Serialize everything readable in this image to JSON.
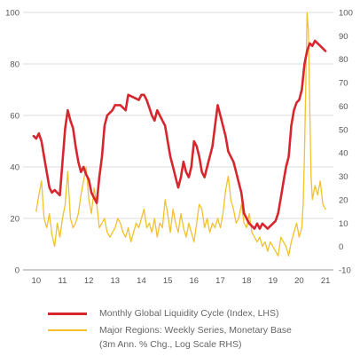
{
  "chart_data": {
    "type": "line",
    "x_ticks": [
      "10",
      "11",
      "12",
      "13",
      "14",
      "15",
      "16",
      "17",
      "18",
      "19",
      "20",
      "21"
    ],
    "xlim": [
      2009.5,
      2021.3
    ],
    "y_left": {
      "ticks": [
        "0",
        "20",
        "40",
        "60",
        "80",
        "100"
      ],
      "lim": [
        0,
        100
      ]
    },
    "y_right": {
      "ticks": [
        "-10",
        "0",
        "10",
        "20",
        "30",
        "40",
        "50",
        "60",
        "70",
        "80",
        "90",
        "100"
      ],
      "lim": [
        -10,
        100
      ]
    },
    "grid": "horizontal",
    "legend_position": "bottom",
    "series": [
      {
        "name": "Monthly Global Liquidity Cycle (Index, LHS)",
        "axis": "left",
        "color": "#d7262e",
        "x": [
          2009.9,
          2010.0,
          2010.1,
          2010.2,
          2010.3,
          2010.4,
          2010.5,
          2010.6,
          2010.7,
          2010.8,
          2010.9,
          2011.0,
          2011.1,
          2011.2,
          2011.3,
          2011.4,
          2011.5,
          2011.6,
          2011.7,
          2011.8,
          2011.9,
          2012.0,
          2012.1,
          2012.2,
          2012.3,
          2012.4,
          2012.5,
          2012.6,
          2012.7,
          2012.9,
          2013.0,
          2013.2,
          2013.4,
          2013.5,
          2013.7,
          2013.9,
          2014.0,
          2014.1,
          2014.2,
          2014.3,
          2014.4,
          2014.5,
          2014.6,
          2014.7,
          2014.8,
          2014.9,
          2015.0,
          2015.1,
          2015.2,
          2015.3,
          2015.4,
          2015.5,
          2015.6,
          2015.7,
          2015.8,
          2015.9,
          2016.0,
          2016.1,
          2016.2,
          2016.3,
          2016.4,
          2016.5,
          2016.6,
          2016.7,
          2016.8,
          2016.9,
          2017.0,
          2017.1,
          2017.2,
          2017.3,
          2017.4,
          2017.5,
          2017.6,
          2017.7,
          2017.8,
          2017.9,
          2018.0,
          2018.1,
          2018.2,
          2018.3,
          2018.4,
          2018.5,
          2018.6,
          2018.7,
          2018.8,
          2018.9,
          2019.0,
          2019.1,
          2019.2,
          2019.3,
          2019.4,
          2019.5,
          2019.6,
          2019.7,
          2019.8,
          2019.9,
          2020.0,
          2020.1,
          2020.2,
          2020.3,
          2020.4,
          2020.5,
          2020.6,
          2020.7,
          2020.8,
          2020.9,
          2021.0
        ],
        "y": [
          52,
          51,
          53,
          50,
          44,
          38,
          32,
          30,
          31,
          30,
          29,
          42,
          55,
          62,
          58,
          55,
          48,
          42,
          38,
          40,
          37,
          35,
          30,
          28,
          26,
          36,
          44,
          56,
          60,
          62,
          64,
          64,
          62,
          68,
          67,
          66,
          68,
          68,
          66,
          63,
          60,
          58,
          62,
          60,
          58,
          56,
          50,
          44,
          40,
          36,
          32,
          36,
          42,
          38,
          36,
          40,
          50,
          48,
          44,
          38,
          36,
          40,
          44,
          48,
          56,
          64,
          60,
          56,
          52,
          46,
          44,
          42,
          38,
          34,
          30,
          22,
          20,
          18,
          17,
          16,
          18,
          16,
          18,
          17,
          16,
          17,
          18,
          19,
          22,
          28,
          34,
          40,
          44,
          56,
          62,
          65,
          66,
          70,
          80,
          85,
          88,
          87,
          89,
          88,
          87,
          86,
          85
        ]
      },
      {
        "name": "Major Regions: Weekly Series, Monetary Base",
        "name_line2": "(3m Ann. % Chg., Log Scale RHS)",
        "axis": "right",
        "color": "#f2c12e",
        "x": [
          2010.0,
          2010.1,
          2010.2,
          2010.3,
          2010.4,
          2010.5,
          2010.6,
          2010.7,
          2010.8,
          2010.9,
          2011.0,
          2011.1,
          2011.2,
          2011.3,
          2011.4,
          2011.5,
          2011.6,
          2011.7,
          2011.8,
          2011.9,
          2012.0,
          2012.1,
          2012.2,
          2012.3,
          2012.4,
          2012.5,
          2012.6,
          2012.7,
          2012.8,
          2012.9,
          2013.0,
          2013.1,
          2013.2,
          2013.3,
          2013.4,
          2013.5,
          2013.6,
          2013.7,
          2013.8,
          2013.9,
          2014.0,
          2014.1,
          2014.2,
          2014.3,
          2014.4,
          2014.5,
          2014.6,
          2014.7,
          2014.8,
          2014.9,
          2015.0,
          2015.1,
          2015.2,
          2015.3,
          2015.4,
          2015.5,
          2015.6,
          2015.7,
          2015.8,
          2015.9,
          2016.0,
          2016.1,
          2016.2,
          2016.3,
          2016.4,
          2016.5,
          2016.6,
          2016.7,
          2016.8,
          2016.9,
          2017.0,
          2017.1,
          2017.2,
          2017.3,
          2017.4,
          2017.5,
          2017.6,
          2017.7,
          2017.8,
          2017.9,
          2018.0,
          2018.1,
          2018.2,
          2018.3,
          2018.4,
          2018.5,
          2018.6,
          2018.7,
          2018.8,
          2018.9,
          2019.0,
          2019.1,
          2019.2,
          2019.3,
          2019.4,
          2019.5,
          2019.6,
          2019.7,
          2019.8,
          2019.9,
          2020.0,
          2020.1,
          2020.15,
          2020.2,
          2020.25,
          2020.3,
          2020.35,
          2020.4,
          2020.45,
          2020.5,
          2020.6,
          2020.7,
          2020.8,
          2020.9,
          2021.0
        ],
        "y": [
          15,
          22,
          28,
          12,
          8,
          14,
          5,
          0,
          10,
          4,
          12,
          18,
          32,
          12,
          8,
          10,
          14,
          22,
          28,
          34,
          20,
          14,
          25,
          18,
          8,
          10,
          12,
          6,
          4,
          6,
          8,
          12,
          10,
          6,
          4,
          8,
          2,
          6,
          10,
          8,
          12,
          16,
          8,
          10,
          6,
          12,
          4,
          10,
          8,
          20,
          14,
          6,
          16,
          10,
          6,
          14,
          8,
          4,
          10,
          6,
          2,
          10,
          18,
          16,
          8,
          12,
          6,
          10,
          8,
          12,
          8,
          14,
          24,
          30,
          20,
          16,
          10,
          12,
          18,
          10,
          8,
          14,
          6,
          4,
          2,
          4,
          0,
          2,
          -2,
          2,
          0,
          -2,
          -4,
          4,
          2,
          0,
          -4,
          2,
          6,
          10,
          4,
          8,
          18,
          40,
          70,
          100,
          92,
          60,
          30,
          20,
          26,
          22,
          28,
          18,
          16
        ]
      }
    ]
  },
  "legend": [
    {
      "label": "Monthly Global Liquidity Cycle (Index, LHS)",
      "color": "#d7262e"
    },
    {
      "label": "Major Regions: Weekly Series, Monetary Base",
      "label2": "(3m Ann. % Chg., Log Scale RHS)",
      "color": "#f2c12e"
    }
  ]
}
